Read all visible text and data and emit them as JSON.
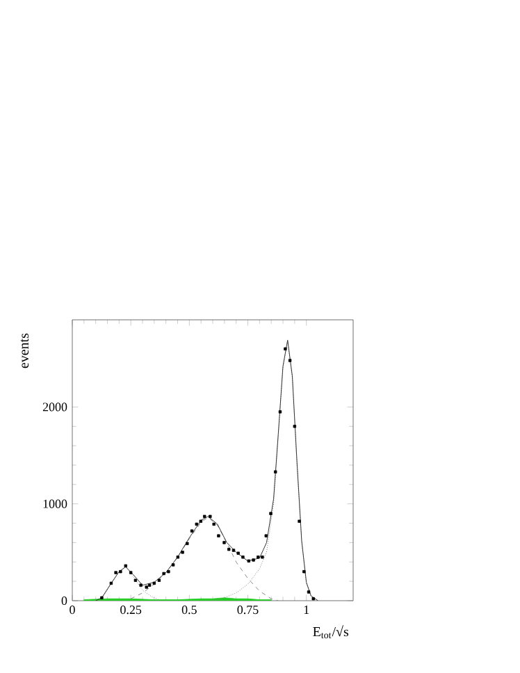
{
  "chart_data": {
    "type": "line",
    "xlabel": "E$_{tot}$/√s",
    "ylabel": "events",
    "xlim": [
      0,
      1.2
    ],
    "ylim": [
      0,
      2900
    ],
    "xticks": [
      0,
      0.25,
      0.5,
      0.75,
      1
    ],
    "yticks": [
      0,
      1000,
      2000
    ],
    "grid": false,
    "series": [
      {
        "type": "area",
        "color": "#22cc22",
        "x": [
          0.05,
          0.15,
          0.25,
          0.35,
          0.45,
          0.55,
          0.6,
          0.65,
          0.7,
          0.75,
          0.8,
          0.85
        ],
        "values": [
          10,
          20,
          20,
          10,
          10,
          20,
          20,
          30,
          20,
          20,
          10,
          10
        ]
      },
      {
        "type": "line",
        "color": "#888888",
        "line_style": "dotted",
        "x": [
          0.12,
          0.16,
          0.2,
          0.23,
          0.26,
          0.3,
          0.34,
          0.38
        ],
        "values": [
          0,
          150,
          300,
          350,
          250,
          110,
          40,
          0
        ]
      },
      {
        "type": "line",
        "color": "#888888",
        "line_style": "dashed",
        "x": [
          0.25,
          0.3,
          0.35,
          0.4,
          0.45,
          0.5,
          0.55,
          0.58,
          0.62,
          0.66,
          0.7,
          0.75,
          0.8,
          0.85,
          0.88
        ],
        "values": [
          20,
          80,
          170,
          290,
          450,
          640,
          810,
          860,
          780,
          600,
          400,
          230,
          100,
          20,
          0
        ]
      },
      {
        "type": "line",
        "color": "#888888",
        "line_style": "dotted",
        "x": [
          0.6,
          0.65,
          0.7,
          0.75,
          0.8,
          0.83,
          0.86,
          0.88,
          0.9,
          0.92,
          0.94,
          0.96,
          0.98,
          1.0,
          1.02,
          1.05
        ],
        "values": [
          0,
          30,
          80,
          170,
          330,
          500,
          1000,
          1700,
          2400,
          2680,
          2300,
          1400,
          600,
          180,
          40,
          0
        ]
      },
      {
        "color": "#333333",
        "line_style": "solid",
        "x": [
          0.1,
          0.126,
          0.166,
          0.2,
          0.228,
          0.26,
          0.3,
          0.35,
          0.4,
          0.45,
          0.5,
          0.55,
          0.58,
          0.62,
          0.66,
          0.7,
          0.75,
          0.8,
          0.83,
          0.86,
          0.88,
          0.9,
          0.92,
          0.94,
          0.96,
          0.98,
          1.0,
          1.02,
          1.05
        ],
        "values": [
          0,
          30,
          180,
          300,
          350,
          270,
          160,
          190,
          290,
          450,
          650,
          830,
          870,
          790,
          600,
          500,
          410,
          440,
          600,
          1050,
          1720,
          2420,
          2690,
          2320,
          1430,
          620,
          190,
          50,
          0
        ]
      },
      {
        "type": "scatter",
        "color": "#000000",
        "marker": "square",
        "x": [
          0.126,
          0.166,
          0.186,
          0.206,
          0.228,
          0.25,
          0.27,
          0.293,
          0.317,
          0.33,
          0.35,
          0.371,
          0.391,
          0.411,
          0.431,
          0.451,
          0.471,
          0.491,
          0.511,
          0.531,
          0.549,
          0.565,
          0.589,
          0.605,
          0.625,
          0.649,
          0.669,
          0.689,
          0.709,
          0.729,
          0.754,
          0.774,
          0.794,
          0.812,
          0.828,
          0.848,
          0.868,
          0.888,
          0.91,
          0.93,
          0.95,
          0.97,
          0.99,
          1.01,
          1.03
        ],
        "values": [
          30,
          180,
          290,
          300,
          360,
          290,
          210,
          160,
          140,
          160,
          180,
          210,
          280,
          300,
          370,
          450,
          500,
          590,
          720,
          790,
          820,
          870,
          870,
          790,
          670,
          600,
          530,
          520,
          490,
          450,
          410,
          420,
          450,
          450,
          670,
          900,
          1330,
          1950,
          2600,
          2480,
          1800,
          820,
          300,
          90,
          20
        ]
      }
    ]
  }
}
